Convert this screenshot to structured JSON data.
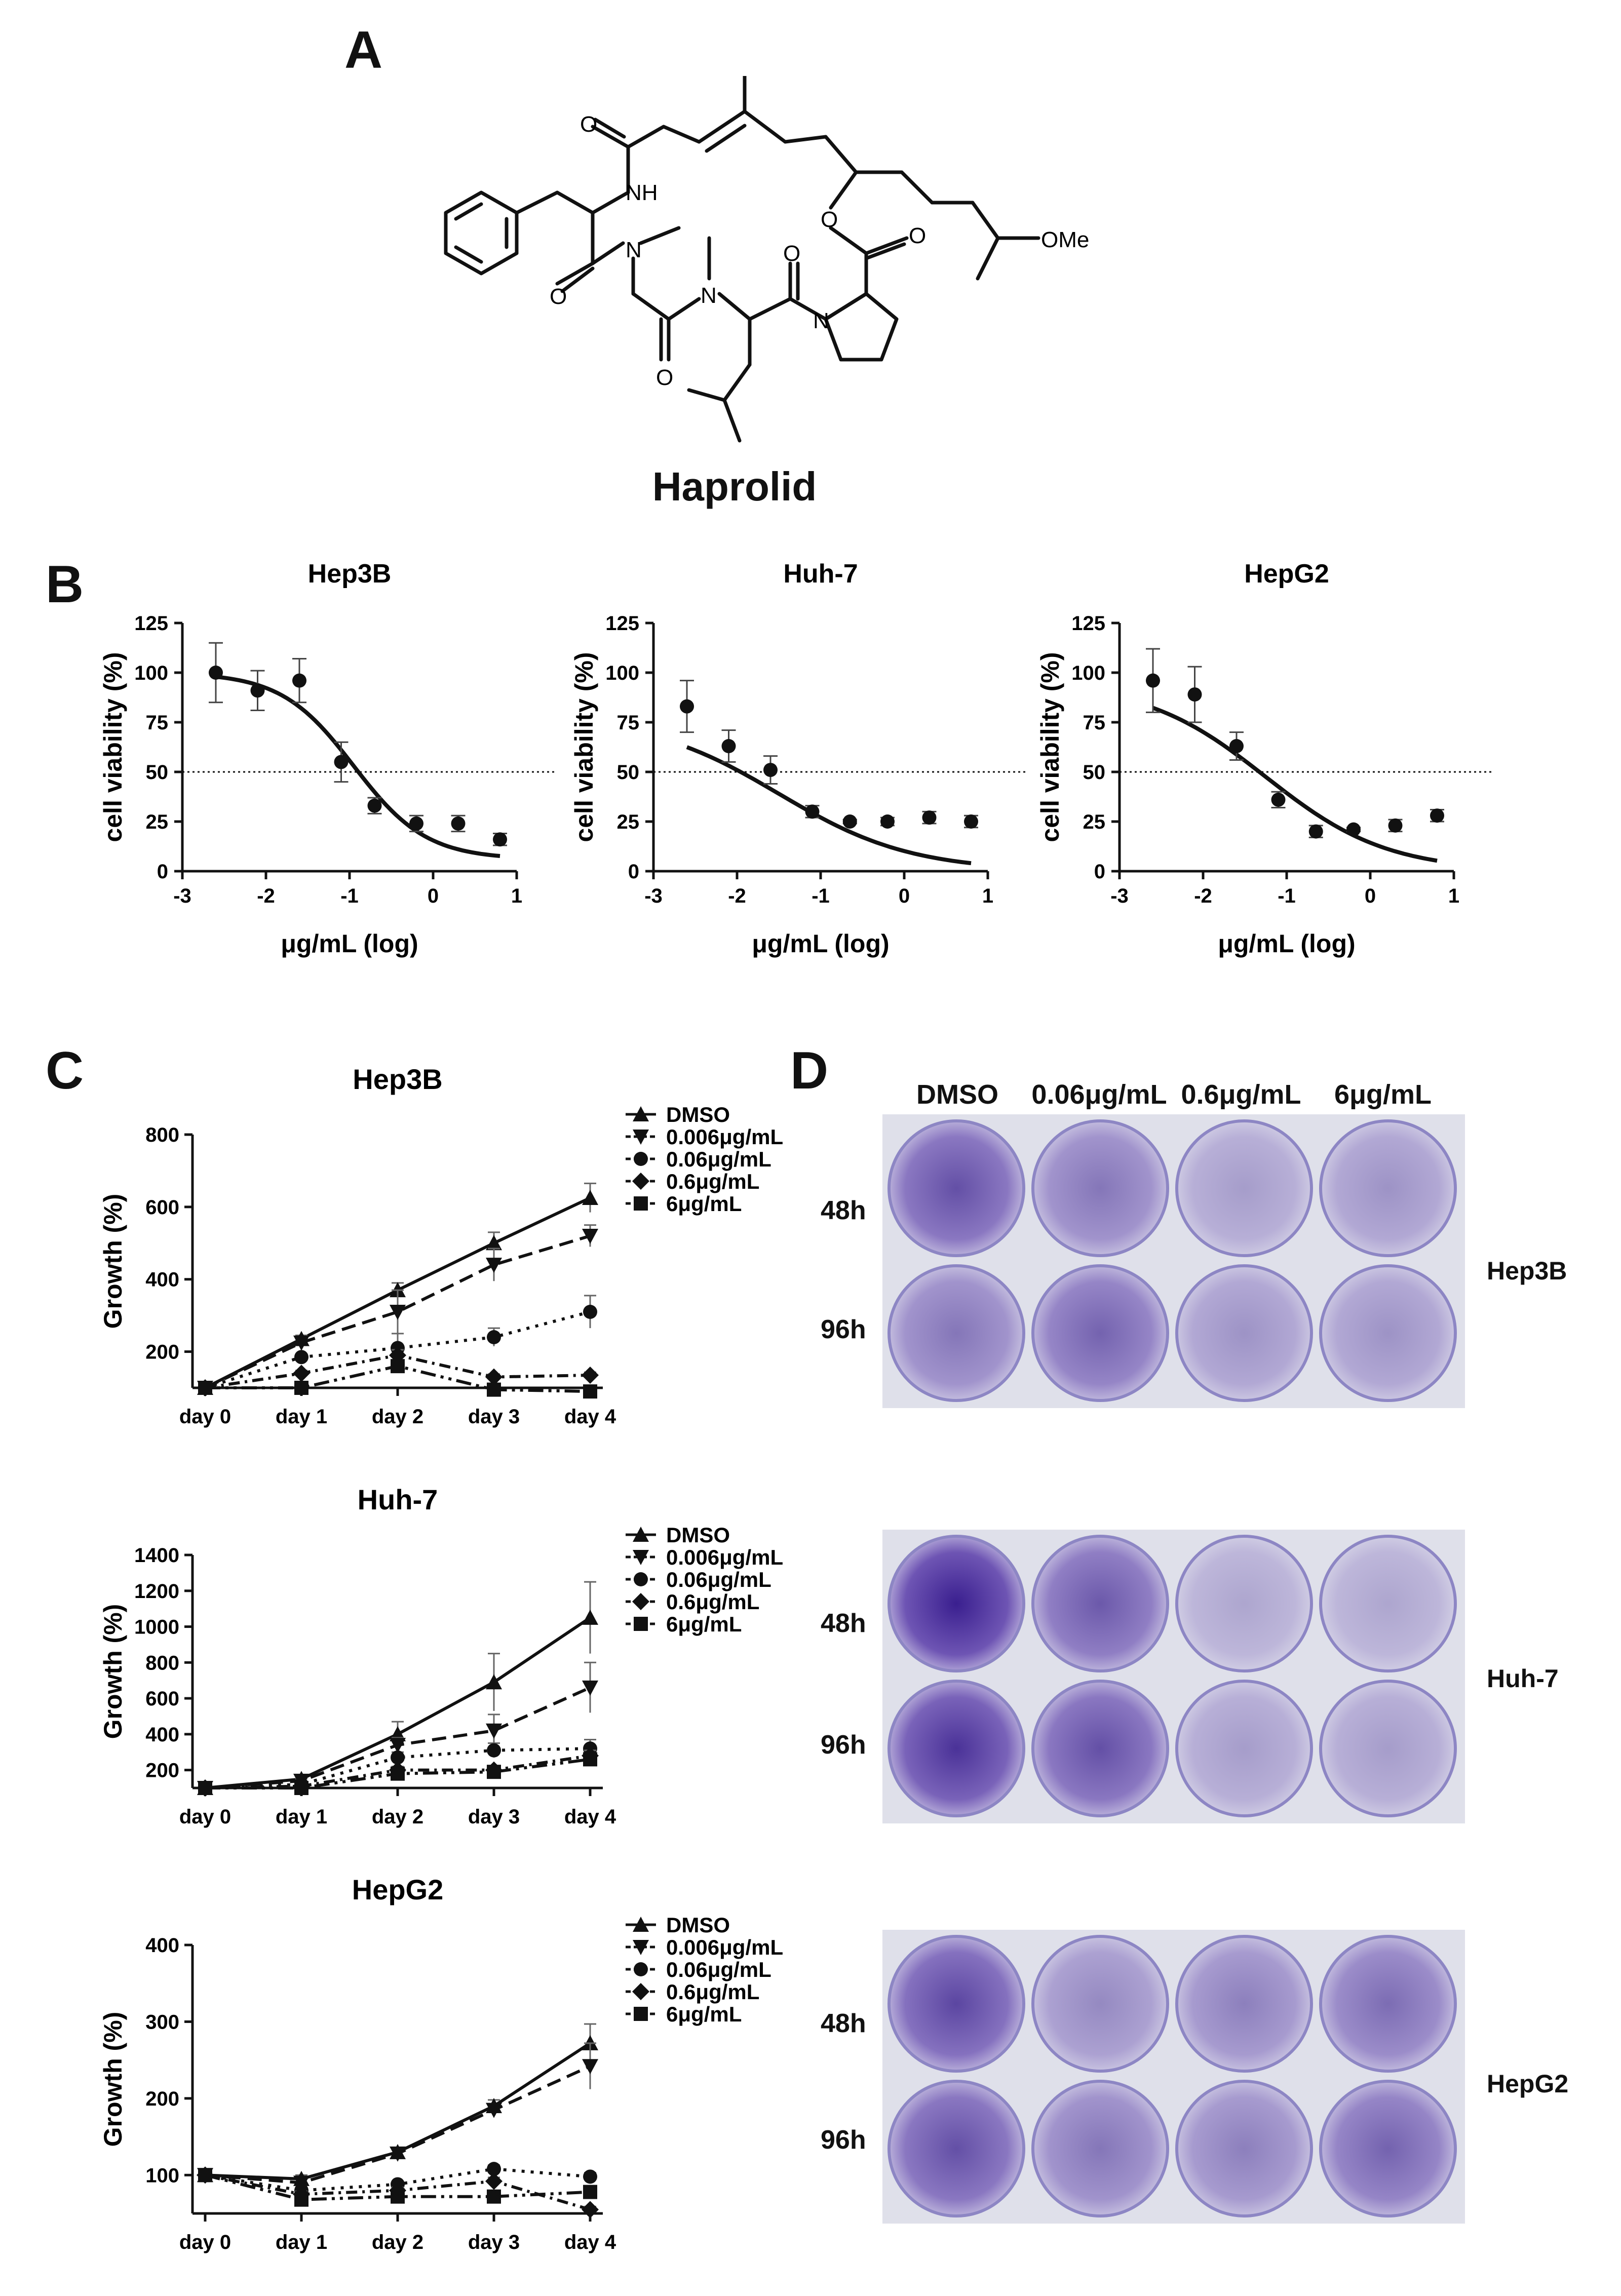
{
  "panels": {
    "a": "A",
    "b": "B",
    "c": "C",
    "d": "D"
  },
  "compound": {
    "name": "Haprolid",
    "atoms": {
      "nh": "NH",
      "o": "O",
      "ome": "OMe",
      "n": "N"
    }
  },
  "panel_d": {
    "columns": [
      "DMSO",
      "0.06μg/mL",
      "0.6μg/mL",
      "6μg/mL"
    ],
    "rows": [
      "48h",
      "96h"
    ],
    "cell_lines": [
      "Hep3B",
      "Huh-7",
      "HepG2"
    ]
  },
  "colors": {
    "stain_dark": "#3a1f8f",
    "stain_light": "#b6a8dd",
    "plate_bg": "#e2e3ec"
  },
  "chart_data": [
    {
      "type": "scatter",
      "panel": "B",
      "title": "Hep3B",
      "xlabel": "μg/mL (log)",
      "ylabel": "cell viability (%)",
      "xlim": [
        -3,
        1
      ],
      "ylim": [
        0,
        125
      ],
      "xticks": [
        "-3",
        "-2",
        "-1",
        "0",
        "1"
      ],
      "yticks": [
        "0",
        "25",
        "50",
        "75",
        "100",
        "125"
      ],
      "reference_line": 50,
      "points": [
        {
          "x": -2.6,
          "y": 100,
          "err": 15
        },
        {
          "x": -2.1,
          "y": 91,
          "err": 10
        },
        {
          "x": -1.6,
          "y": 96,
          "err": 11
        },
        {
          "x": -1.1,
          "y": 55,
          "err": 10
        },
        {
          "x": -0.7,
          "y": 33,
          "err": 4
        },
        {
          "x": -0.2,
          "y": 24,
          "err": 4
        },
        {
          "x": 0.3,
          "y": 24,
          "err": 4
        },
        {
          "x": 0.8,
          "y": 16,
          "err": 3
        }
      ],
      "fit": {
        "top": 100,
        "bottom": 6,
        "log_ic50": -0.95,
        "hill": 1.0,
        "x_range": [
          -2.6,
          0.8
        ]
      }
    },
    {
      "type": "scatter",
      "panel": "B",
      "title": "Huh-7",
      "xlabel": "μg/mL (log)",
      "ylabel": "cell viability (%)",
      "xlim": [
        -3,
        1
      ],
      "ylim": [
        0,
        125
      ],
      "xticks": [
        "-3",
        "-2",
        "-1",
        "0",
        "1"
      ],
      "yticks": [
        "0",
        "25",
        "50",
        "75",
        "100",
        "125"
      ],
      "reference_line": 50,
      "points": [
        {
          "x": -2.6,
          "y": 83,
          "err": 13
        },
        {
          "x": -2.1,
          "y": 63,
          "err": 8
        },
        {
          "x": -1.6,
          "y": 51,
          "err": 7
        },
        {
          "x": -1.1,
          "y": 30,
          "err": 3
        },
        {
          "x": -0.65,
          "y": 25,
          "err": 1
        },
        {
          "x": -0.2,
          "y": 25,
          "err": 2
        },
        {
          "x": 0.3,
          "y": 27,
          "err": 3
        },
        {
          "x": 0.8,
          "y": 25,
          "err": 3
        }
      ],
      "fit": {
        "top": 78,
        "bottom": 0,
        "log_ic50": -1.5,
        "hill": 0.55,
        "x_range": [
          -2.6,
          0.8
        ]
      }
    },
    {
      "type": "scatter",
      "panel": "B",
      "title": "HepG2",
      "xlabel": "μg/mL (log)",
      "ylabel": "cell viability (%)",
      "xlim": [
        -3,
        1
      ],
      "ylim": [
        0,
        125
      ],
      "xticks": [
        "-3",
        "-2",
        "-1",
        "0",
        "1"
      ],
      "yticks": [
        "0",
        "25",
        "50",
        "75",
        "100",
        "125"
      ],
      "reference_line": 50,
      "points": [
        {
          "x": -2.6,
          "y": 96,
          "err": 16
        },
        {
          "x": -2.1,
          "y": 89,
          "err": 14
        },
        {
          "x": -1.6,
          "y": 63,
          "err": 7
        },
        {
          "x": -1.1,
          "y": 36,
          "err": 4
        },
        {
          "x": -0.65,
          "y": 20,
          "err": 3
        },
        {
          "x": -0.2,
          "y": 21,
          "err": 1
        },
        {
          "x": 0.3,
          "y": 23,
          "err": 3
        },
        {
          "x": 0.8,
          "y": 28,
          "err": 3
        }
      ],
      "fit": {
        "top": 95,
        "bottom": 0,
        "log_ic50": -1.25,
        "hill": 0.6,
        "x_range": [
          -2.6,
          0.8
        ]
      }
    },
    {
      "type": "line",
      "panel": "C",
      "title": "Hep3B",
      "ylabel": "Growth (%)",
      "categories": [
        "day 0",
        "day 1",
        "day 2",
        "day 3",
        "day 4"
      ],
      "ylim": [
        100,
        800
      ],
      "yticks": [
        "200",
        "400",
        "600",
        "800"
      ],
      "series": [
        {
          "name": "DMSO",
          "values": [
            100,
            235,
            370,
            500,
            625
          ],
          "err": [
            0,
            10,
            20,
            30,
            40
          ]
        },
        {
          "name": "0.006μg/mL",
          "values": [
            100,
            225,
            310,
            440,
            520
          ],
          "err": [
            0,
            10,
            60,
            45,
            30
          ]
        },
        {
          "name": "0.06μg/mL",
          "values": [
            100,
            185,
            210,
            240,
            310
          ],
          "err": [
            0,
            8,
            40,
            25,
            45
          ]
        },
        {
          "name": "0.6μg/mL",
          "values": [
            100,
            140,
            190,
            130,
            135
          ],
          "err": [
            0,
            8,
            15,
            8,
            8
          ]
        },
        {
          "name": "6μg/mL",
          "values": [
            100,
            100,
            160,
            95,
            90
          ],
          "err": [
            0,
            5,
            10,
            6,
            6
          ]
        }
      ]
    },
    {
      "type": "line",
      "panel": "C",
      "title": "Huh-7",
      "ylabel": "Growth (%)",
      "categories": [
        "day 0",
        "day 1",
        "day 2",
        "day 3",
        "day 4"
      ],
      "ylim": [
        100,
        1400
      ],
      "yticks": [
        "200",
        "400",
        "600",
        "800",
        "1000",
        "1200",
        "1400"
      ],
      "series": [
        {
          "name": "DMSO",
          "values": [
            100,
            150,
            400,
            690,
            1050
          ],
          "err": [
            0,
            15,
            70,
            160,
            200
          ]
        },
        {
          "name": "0.006μg/mL",
          "values": [
            100,
            140,
            340,
            420,
            660
          ],
          "err": [
            0,
            12,
            40,
            90,
            140
          ]
        },
        {
          "name": "0.06μg/mL",
          "values": [
            100,
            120,
            270,
            310,
            320
          ],
          "err": [
            0,
            10,
            30,
            40,
            50
          ]
        },
        {
          "name": "0.6μg/mL",
          "values": [
            100,
            110,
            200,
            200,
            280
          ],
          "err": [
            0,
            10,
            20,
            20,
            30
          ]
        },
        {
          "name": "6μg/mL",
          "values": [
            100,
            100,
            180,
            190,
            260
          ],
          "err": [
            0,
            8,
            20,
            20,
            30
          ]
        }
      ]
    },
    {
      "type": "line",
      "panel": "C",
      "title": "HepG2",
      "ylabel": "Growth (%)",
      "categories": [
        "day 0",
        "day 1",
        "day 2",
        "day 3",
        "day 4"
      ],
      "ylim": [
        50,
        400
      ],
      "yticks": [
        "100",
        "200",
        "300",
        "400"
      ],
      "series": [
        {
          "name": "DMSO",
          "values": [
            100,
            95,
            130,
            190,
            272
          ],
          "err": [
            0,
            5,
            6,
            8,
            25
          ]
        },
        {
          "name": "0.006μg/mL",
          "values": [
            100,
            90,
            128,
            185,
            242
          ],
          "err": [
            0,
            5,
            6,
            8,
            30
          ]
        },
        {
          "name": "0.06μg/mL",
          "values": [
            100,
            80,
            88,
            108,
            98
          ],
          "err": [
            0,
            4,
            4,
            5,
            5
          ]
        },
        {
          "name": "0.6μg/mL",
          "values": [
            100,
            75,
            80,
            92,
            55
          ],
          "err": [
            0,
            4,
            4,
            5,
            4
          ]
        },
        {
          "name": "6μg/mL",
          "values": [
            100,
            68,
            72,
            72,
            78
          ],
          "err": [
            0,
            4,
            4,
            4,
            4
          ]
        }
      ]
    }
  ]
}
